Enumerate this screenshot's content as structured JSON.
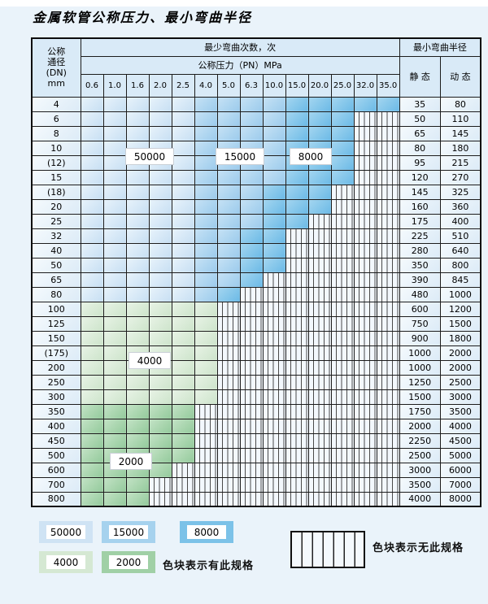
{
  "page": {
    "title": "金属软管公称压力、最小弯曲半径"
  },
  "table": {
    "dn_header_lines": [
      "公称",
      "通径",
      "(DN)",
      "mm"
    ],
    "cycles_header": "最少弯曲次数，次",
    "pressure_header": "公称压力（PN）MPa",
    "radius_header": "最小弯曲半径",
    "static_header": "静 态",
    "dynamic_header": "动 态",
    "pressures": [
      "0.6",
      "1.0",
      "1.6",
      "2.0",
      "2.5",
      "4.0",
      "5.0",
      "6.3",
      "10.0",
      "15.0",
      "20.0",
      "25.0",
      "32.0",
      "35.0"
    ],
    "rows": [
      {
        "dn": "4",
        "cells": [
          50000,
          50000,
          50000,
          50000,
          50000,
          15000,
          15000,
          15000,
          15000,
          8000,
          8000,
          8000,
          8000,
          8000
        ],
        "static": "35",
        "dynamic": "80"
      },
      {
        "dn": "6",
        "cells": [
          50000,
          50000,
          50000,
          50000,
          50000,
          15000,
          15000,
          15000,
          15000,
          8000,
          8000,
          8000,
          null,
          null
        ],
        "static": "50",
        "dynamic": "110"
      },
      {
        "dn": "8",
        "cells": [
          50000,
          50000,
          50000,
          50000,
          50000,
          15000,
          15000,
          15000,
          15000,
          8000,
          8000,
          8000,
          null,
          null
        ],
        "static": "65",
        "dynamic": "145"
      },
      {
        "dn": "10",
        "cells": [
          50000,
          50000,
          50000,
          50000,
          50000,
          15000,
          15000,
          15000,
          15000,
          8000,
          8000,
          8000,
          null,
          null
        ],
        "static": "80",
        "dynamic": "180"
      },
      {
        "dn": "(12)",
        "cells": [
          50000,
          50000,
          50000,
          50000,
          50000,
          15000,
          15000,
          15000,
          15000,
          8000,
          8000,
          8000,
          null,
          null
        ],
        "static": "95",
        "dynamic": "215"
      },
      {
        "dn": "15",
        "cells": [
          50000,
          50000,
          50000,
          50000,
          50000,
          15000,
          15000,
          15000,
          15000,
          8000,
          8000,
          8000,
          null,
          null
        ],
        "static": "120",
        "dynamic": "270"
      },
      {
        "dn": "(18)",
        "cells": [
          50000,
          50000,
          50000,
          50000,
          50000,
          15000,
          15000,
          15000,
          8000,
          8000,
          8000,
          null,
          null,
          null
        ],
        "static": "145",
        "dynamic": "325"
      },
      {
        "dn": "20",
        "cells": [
          50000,
          50000,
          50000,
          50000,
          50000,
          15000,
          15000,
          15000,
          8000,
          8000,
          8000,
          null,
          null,
          null
        ],
        "static": "160",
        "dynamic": "360"
      },
      {
        "dn": "25",
        "cells": [
          50000,
          50000,
          50000,
          50000,
          50000,
          15000,
          15000,
          15000,
          8000,
          8000,
          null,
          null,
          null,
          null
        ],
        "static": "175",
        "dynamic": "400"
      },
      {
        "dn": "32",
        "cells": [
          50000,
          50000,
          50000,
          50000,
          50000,
          15000,
          15000,
          8000,
          8000,
          null,
          null,
          null,
          null,
          null
        ],
        "static": "225",
        "dynamic": "510"
      },
      {
        "dn": "40",
        "cells": [
          50000,
          50000,
          50000,
          50000,
          50000,
          15000,
          15000,
          8000,
          8000,
          null,
          null,
          null,
          null,
          null
        ],
        "static": "280",
        "dynamic": "640"
      },
      {
        "dn": "50",
        "cells": [
          50000,
          50000,
          50000,
          50000,
          50000,
          15000,
          15000,
          8000,
          8000,
          null,
          null,
          null,
          null,
          null
        ],
        "static": "350",
        "dynamic": "800"
      },
      {
        "dn": "65",
        "cells": [
          50000,
          50000,
          50000,
          50000,
          50000,
          15000,
          15000,
          8000,
          null,
          null,
          null,
          null,
          null,
          null
        ],
        "static": "390",
        "dynamic": "845"
      },
      {
        "dn": "80",
        "cells": [
          50000,
          50000,
          50000,
          50000,
          50000,
          15000,
          8000,
          null,
          null,
          null,
          null,
          null,
          null,
          null
        ],
        "static": "480",
        "dynamic": "1000"
      },
      {
        "dn": "100",
        "cells": [
          4000,
          4000,
          4000,
          4000,
          4000,
          4000,
          null,
          null,
          null,
          null,
          null,
          null,
          null,
          null
        ],
        "static": "600",
        "dynamic": "1200"
      },
      {
        "dn": "125",
        "cells": [
          4000,
          4000,
          4000,
          4000,
          4000,
          4000,
          null,
          null,
          null,
          null,
          null,
          null,
          null,
          null
        ],
        "static": "750",
        "dynamic": "1500"
      },
      {
        "dn": "150",
        "cells": [
          4000,
          4000,
          4000,
          4000,
          4000,
          4000,
          null,
          null,
          null,
          null,
          null,
          null,
          null,
          null
        ],
        "static": "900",
        "dynamic": "1800"
      },
      {
        "dn": "(175)",
        "cells": [
          4000,
          4000,
          4000,
          4000,
          4000,
          4000,
          null,
          null,
          null,
          null,
          null,
          null,
          null,
          null
        ],
        "static": "1000",
        "dynamic": "2000"
      },
      {
        "dn": "200",
        "cells": [
          4000,
          4000,
          4000,
          4000,
          4000,
          4000,
          null,
          null,
          null,
          null,
          null,
          null,
          null,
          null
        ],
        "static": "1000",
        "dynamic": "2000"
      },
      {
        "dn": "250",
        "cells": [
          4000,
          4000,
          4000,
          4000,
          4000,
          4000,
          null,
          null,
          null,
          null,
          null,
          null,
          null,
          null
        ],
        "static": "1250",
        "dynamic": "2500"
      },
      {
        "dn": "300",
        "cells": [
          4000,
          4000,
          4000,
          4000,
          4000,
          4000,
          null,
          null,
          null,
          null,
          null,
          null,
          null,
          null
        ],
        "static": "1500",
        "dynamic": "3000"
      },
      {
        "dn": "350",
        "cells": [
          2000,
          2000,
          2000,
          2000,
          2000,
          null,
          null,
          null,
          null,
          null,
          null,
          null,
          null,
          null
        ],
        "static": "1750",
        "dynamic": "3500"
      },
      {
        "dn": "400",
        "cells": [
          2000,
          2000,
          2000,
          2000,
          2000,
          null,
          null,
          null,
          null,
          null,
          null,
          null,
          null,
          null
        ],
        "static": "2000",
        "dynamic": "4000"
      },
      {
        "dn": "450",
        "cells": [
          2000,
          2000,
          2000,
          2000,
          2000,
          null,
          null,
          null,
          null,
          null,
          null,
          null,
          null,
          null
        ],
        "static": "2250",
        "dynamic": "4500"
      },
      {
        "dn": "500",
        "cells": [
          2000,
          2000,
          2000,
          2000,
          2000,
          null,
          null,
          null,
          null,
          null,
          null,
          null,
          null,
          null
        ],
        "static": "2500",
        "dynamic": "5000"
      },
      {
        "dn": "600",
        "cells": [
          2000,
          2000,
          2000,
          2000,
          null,
          null,
          null,
          null,
          null,
          null,
          null,
          null,
          null,
          null
        ],
        "static": "3000",
        "dynamic": "6000"
      },
      {
        "dn": "700",
        "cells": [
          2000,
          2000,
          2000,
          null,
          null,
          null,
          null,
          null,
          null,
          null,
          null,
          null,
          null,
          null
        ],
        "static": "3500",
        "dynamic": "7000"
      },
      {
        "dn": "800",
        "cells": [
          2000,
          2000,
          2000,
          null,
          null,
          null,
          null,
          null,
          null,
          null,
          null,
          null,
          null,
          null
        ],
        "static": "4000",
        "dynamic": "8000"
      }
    ]
  },
  "overlays": [
    {
      "text": "50000",
      "col": 3.05,
      "row": 4.1
    },
    {
      "text": "15000",
      "col": 7.0,
      "row": 4.1
    },
    {
      "text": "8000",
      "col": 10.1,
      "row": 4.1
    },
    {
      "text": "4000",
      "col": 3.05,
      "row": 18.0
    },
    {
      "text": "2000",
      "col": 2.2,
      "row": 24.9
    }
  ],
  "legend": {
    "has_spec": [
      {
        "label": "50000"
      },
      {
        "label": "15000"
      },
      {
        "label": "8000"
      },
      {
        "label": "4000"
      },
      {
        "label": "2000"
      }
    ],
    "has_spec_note": "色块表示有此规格",
    "no_spec_note": "色块表示无此规格"
  },
  "colors": {
    "c50000": "#cfe3f4",
    "c15000": "#a6d2ee",
    "c8000": "#7cc2e8",
    "c4000": "#d5e8d3",
    "c2000": "#a0d0a6",
    "no_spec_bg": "#f3f8fd",
    "header_bg": "#d9eaf7"
  }
}
